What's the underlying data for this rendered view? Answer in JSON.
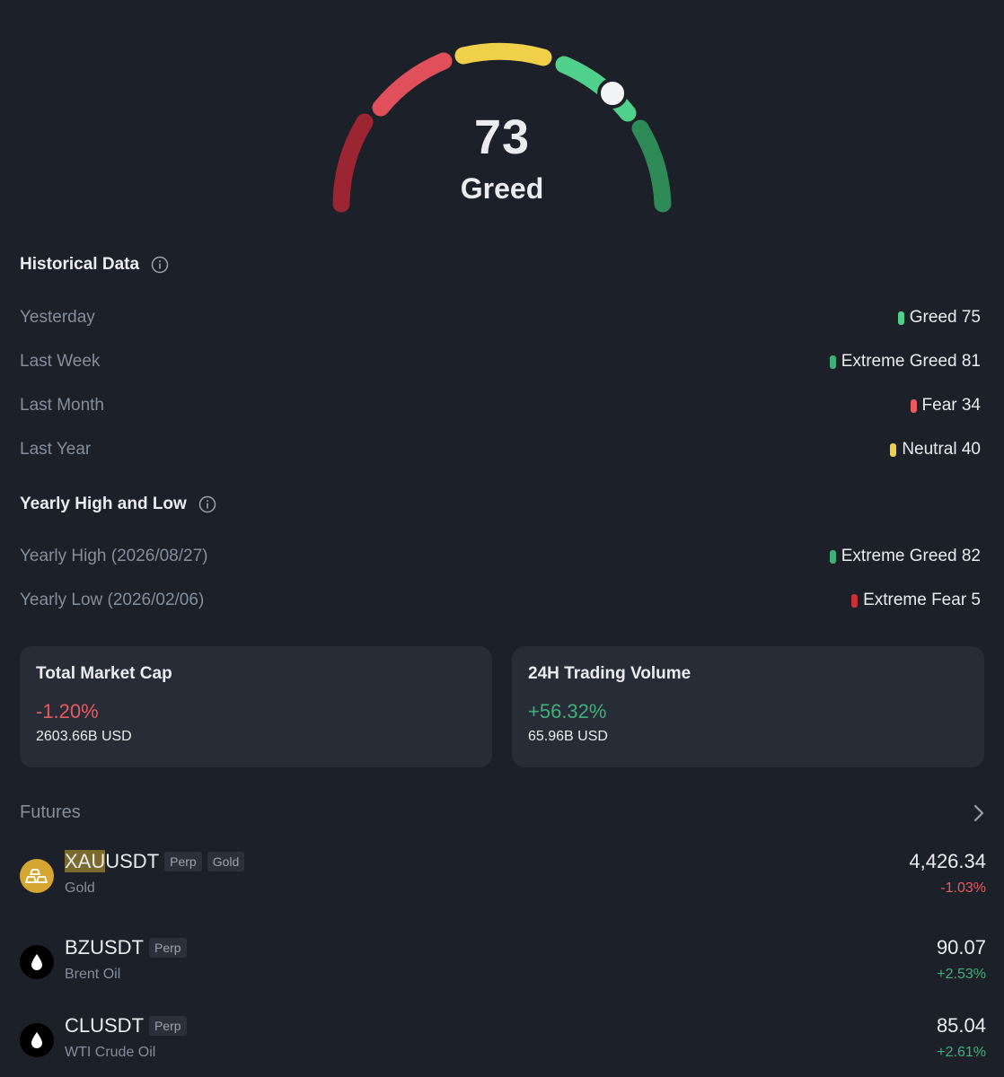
{
  "gauge": {
    "value": "73",
    "label": "Greed",
    "value_fraction": 0.73
  },
  "historical": {
    "title": "Historical Data",
    "rows": [
      {
        "label": "Yesterday",
        "value": "Greed 75",
        "color": "#4fd18b"
      },
      {
        "label": "Last Week",
        "value": "Extreme Greed 81",
        "color": "#3fb07a"
      },
      {
        "label": "Last Month",
        "value": "Fear 34",
        "color": "#e85a5f"
      },
      {
        "label": "Last Year",
        "value": "Neutral 40",
        "color": "#f0cf49"
      }
    ]
  },
  "yearly": {
    "title": "Yearly High and Low",
    "rows": [
      {
        "label": "Yearly High (2026/08/27)",
        "value": "Extreme Greed 82",
        "color": "#3fb07a"
      },
      {
        "label": "Yearly Low (2026/02/06)",
        "value": "Extreme Fear 5",
        "color": "#c8313a"
      }
    ]
  },
  "cards": [
    {
      "title": "Total Market Cap",
      "change": "-1.20%",
      "amount": "2603.66B USD",
      "direction": "down"
    },
    {
      "title": "24H Trading Volume",
      "change": "+56.32%",
      "amount": "65.96B USD",
      "direction": "up"
    }
  ],
  "futures": {
    "title": "Futures",
    "items": [
      {
        "symbol_highlight": "XAU",
        "symbol_rest": "USDT",
        "tags": [
          "Perp",
          "Gold"
        ],
        "name": "Gold",
        "price": "4,426.34",
        "change": "-1.03%",
        "direction": "down",
        "icon": "gold-bars-icon"
      },
      {
        "symbol_highlight": "",
        "symbol_rest": "BZUSDT",
        "tags": [
          "Perp"
        ],
        "name": "Brent Oil",
        "price": "90.07",
        "change": "+2.53%",
        "direction": "up",
        "icon": "oil-drop-icon"
      },
      {
        "symbol_highlight": "",
        "symbol_rest": "CLUSDT",
        "tags": [
          "Perp"
        ],
        "name": "WTI Crude Oil",
        "price": "85.04",
        "change": "+2.61%",
        "direction": "up",
        "icon": "oil-drop-icon"
      }
    ]
  },
  "colors": {
    "extreme_fear": "#9b2530",
    "fear": "#e0505a",
    "neutral": "#f0cf49",
    "greed": "#4fd18b",
    "extreme_greed": "#2e8b57",
    "negative": "#e85a5f",
    "positive": "#3fb07a"
  }
}
